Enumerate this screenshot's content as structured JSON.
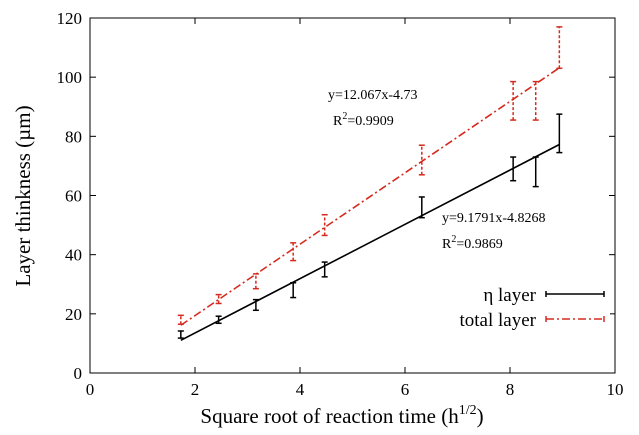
{
  "chart_data": {
    "type": "scatter",
    "title": "",
    "xlabel": "Square root of reaction time (h",
    "xlabel_sup": "1/2",
    "xlabel_suffix": ")",
    "ylabel": "Layer thinkness (µm)",
    "xlim": [
      0,
      10
    ],
    "ylim": [
      0,
      120
    ],
    "xticks": [
      0,
      2,
      4,
      6,
      8,
      10
    ],
    "yticks": [
      0,
      20,
      40,
      60,
      80,
      100,
      120
    ],
    "grid": false,
    "legend_position": "bottom-right",
    "series": [
      {
        "name": "η layer",
        "color": "#000000",
        "line_style": "solid",
        "points": [
          {
            "x": 1.73,
            "y": 13,
            "err": 1.2
          },
          {
            "x": 2.45,
            "y": 18,
            "err": 1.2
          },
          {
            "x": 3.16,
            "y": 23,
            "err": 1.8
          },
          {
            "x": 3.87,
            "y": 28,
            "err": 2.5
          },
          {
            "x": 4.47,
            "y": 35,
            "err": 2.5
          },
          {
            "x": 6.32,
            "y": 56,
            "err": 3.5
          },
          {
            "x": 8.06,
            "y": 69,
            "err": 4
          },
          {
            "x": 8.49,
            "y": 68,
            "err": 5
          },
          {
            "x": 8.94,
            "y": 81,
            "err": 6.5
          }
        ],
        "fit": {
          "slope": 9.1791,
          "intercept": -4.8268,
          "x_from": 1.73,
          "x_to": 8.94
        },
        "equation": "y=9.1791x-4.8268",
        "r2_label": "R",
        "r2_sup": "2",
        "r2_value": "=0.9869"
      },
      {
        "name": "total layer",
        "color": "#d62a1e",
        "line_style": "dash-dot",
        "points": [
          {
            "x": 1.73,
            "y": 18,
            "err": 1.5
          },
          {
            "x": 2.45,
            "y": 25,
            "err": 1.5
          },
          {
            "x": 3.16,
            "y": 31,
            "err": 2.5
          },
          {
            "x": 3.87,
            "y": 41,
            "err": 3
          },
          {
            "x": 4.47,
            "y": 50,
            "err": 3.5
          },
          {
            "x": 6.32,
            "y": 72,
            "err": 5
          },
          {
            "x": 8.06,
            "y": 92,
            "err": 6.5
          },
          {
            "x": 8.49,
            "y": 92,
            "err": 6.5
          },
          {
            "x": 8.94,
            "y": 110,
            "err": 7
          }
        ],
        "fit": {
          "slope": 12.067,
          "intercept": -4.73,
          "x_from": 1.73,
          "x_to": 8.94
        },
        "equation": "y=12.067x-4.73",
        "r2_label": "R",
        "r2_sup": "2",
        "r2_value": "=0.9909"
      }
    ]
  }
}
